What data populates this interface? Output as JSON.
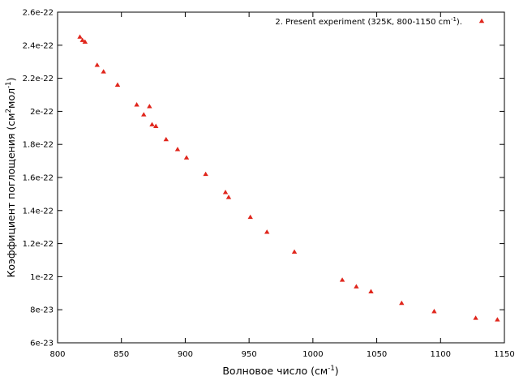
{
  "chart_data": {
    "type": "scatter",
    "title": "",
    "xlabel": "Волновое число (см",
    "xlabel_sup": "-1",
    "xlabel_tail": ")",
    "ylabel": "Коэффициент поглощения (см",
    "ylabel_sup1": "2",
    "ylabel_mid": "мол",
    "ylabel_sup2": "-1",
    "ylabel_tail": ")",
    "xlim": [
      800,
      1150
    ],
    "ylim": [
      6e-23,
      2.6e-22
    ],
    "x_ticks": [
      800,
      850,
      900,
      950,
      1000,
      1050,
      1100,
      1150
    ],
    "x_tick_labels": [
      "800",
      "850",
      "900",
      "950",
      "1000",
      "1050",
      "1100",
      "1150"
    ],
    "y_ticks": [
      6e-23,
      8e-23,
      1e-22,
      1.2e-22,
      1.4e-22,
      1.6e-22,
      1.8e-22,
      2e-22,
      2.2e-22,
      2.4e-22,
      2.6e-22
    ],
    "y_tick_labels": [
      "6e-23",
      "8e-23",
      "1e-22",
      "1.2e-22",
      "1.4e-22",
      "1.6e-22",
      "1.8e-22",
      "2e-22",
      "2.2e-22",
      "2.4e-22",
      "2.6e-22"
    ],
    "grid": false,
    "legend_position": "top-right",
    "series": [
      {
        "name": "2. Present experiment (325K, 800-1150 cm",
        "name_sup": "-1",
        "name_tail": ").",
        "color": "#e0261c",
        "marker": "triangle",
        "points": [
          [
            817.5,
            2.45e-22
          ],
          [
            819.5,
            2.43e-22
          ],
          [
            821.5,
            2.42e-22
          ],
          [
            831,
            2.28e-22
          ],
          [
            836,
            2.24e-22
          ],
          [
            847,
            2.16e-22
          ],
          [
            862,
            2.04e-22
          ],
          [
            867.5,
            1.98e-22
          ],
          [
            872,
            2.03e-22
          ],
          [
            874,
            1.92e-22
          ],
          [
            877,
            1.91e-22
          ],
          [
            885,
            1.83e-22
          ],
          [
            894,
            1.77e-22
          ],
          [
            901,
            1.72e-22
          ],
          [
            916,
            1.62e-22
          ],
          [
            931.5,
            1.51e-22
          ],
          [
            934,
            1.48e-22
          ],
          [
            951,
            1.36e-22
          ],
          [
            964,
            1.27e-22
          ],
          [
            985.5,
            1.15e-22
          ],
          [
            1023,
            9.8e-23
          ],
          [
            1034,
            9.4e-23
          ],
          [
            1045.5,
            9.1e-23
          ],
          [
            1069.5,
            8.4e-23
          ],
          [
            1095,
            7.9e-23
          ],
          [
            1127.5,
            7.5e-23
          ],
          [
            1144.5,
            7.4e-23
          ]
        ]
      }
    ]
  }
}
